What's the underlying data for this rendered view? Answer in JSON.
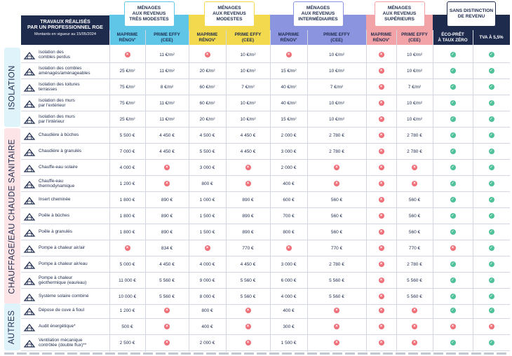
{
  "header": {
    "title_line1": "TRAVAUX RÉALISÉS",
    "title_line2": "PAR UN PROFESSIONNEL RGE",
    "subtitle": "Montants en vigueur au 15/05/2024"
  },
  "groups": [
    {
      "label": [
        "MÉNAGES",
        "AUX REVENUS",
        "TRÈS MODESTES"
      ],
      "color": "#5fc6e8"
    },
    {
      "label": [
        "MÉNAGES",
        "AUX REVENUS",
        "MODESTES"
      ],
      "color": "#f3d94e"
    },
    {
      "label": [
        "MÉNAGES",
        "AUX REVENUS",
        "INTERMÉDIAIRES"
      ],
      "color": "#8b95df"
    },
    {
      "label": [
        "MÉNAGES",
        "AUX REVENUS",
        "SUPÉRIEURS"
      ],
      "color": "#f2a3a7"
    },
    {
      "label": [
        "SANS DISTINCTION",
        "DE REVENU"
      ],
      "color": "#1e2b4d"
    }
  ],
  "subheaders": [
    [
      "MAPRIME",
      "RÉNOV'"
    ],
    [
      "PRIME EFFY",
      "(CEE)"
    ],
    [
      "MAPRIME",
      "RÉNOV'"
    ],
    [
      "PRIME EFFY",
      "(CEE)"
    ],
    [
      "MAPRIME",
      "RÉNOV'"
    ],
    [
      "PRIME EFFY",
      "(CEE)"
    ],
    [
      "MAPRIME",
      "RÉNOV'"
    ],
    [
      "PRIME EFFY",
      "(CEE)"
    ],
    [
      "ÉCO-PRÊT",
      "À TAUX ZÉRO"
    ],
    [
      "TVA À 5,5%"
    ]
  ],
  "sections": [
    {
      "name": "ISOLATION",
      "color": "#dff3fb"
    },
    {
      "name": "CHAUFFAGE/EAU CHAUDE SANITAIRE",
      "color": "#fde4e6"
    },
    {
      "name": "AUTRES",
      "color": "#dff3fb"
    }
  ],
  "rows": [
    {
      "section": 0,
      "icon": "attic-insulation-icon",
      "label": [
        "Isolation des",
        "combles perdus"
      ],
      "cells": [
        "x",
        "11 €/m²",
        "x",
        "10 €/m²",
        "x",
        "10 €/m²",
        "x",
        "10 €/m²",
        "v",
        "v"
      ]
    },
    {
      "section": 0,
      "icon": "converted-attic-icon",
      "label": [
        "Isolation des combles",
        "aménagés/aménageables"
      ],
      "cells": [
        "25 €/m²",
        "11 €/m²",
        "20 €/m²",
        "10 €/m²",
        "15 €/m²",
        "10 €/m²",
        "x",
        "10 €/m²",
        "v",
        "v"
      ]
    },
    {
      "section": 0,
      "icon": "roof-terrace-icon",
      "label": [
        "Isolation des toitures",
        "terrasses"
      ],
      "cells": [
        "75 €/m²",
        "8 €/m²",
        "60 €/m²",
        "7 €/m²",
        "40 €/m²",
        "7 €/m²",
        "x",
        "7 €/m²",
        "v",
        "v"
      ]
    },
    {
      "section": 0,
      "icon": "exterior-wall-icon",
      "label": [
        "Isolation des murs",
        "par l'extérieur"
      ],
      "cells": [
        "75 €/m²",
        "11 €/m²",
        "60 €/m²",
        "10 €/m²",
        "40 €/m²",
        "10 €/m²",
        "x",
        "10 €/m²",
        "v",
        "v"
      ]
    },
    {
      "section": 0,
      "icon": "interior-wall-icon",
      "label": [
        "Isolation des murs",
        "par l'intérieur"
      ],
      "cells": [
        "25 €/m²",
        "11 €/m²",
        "20 €/m²",
        "10 €/m²",
        "15 €/m²",
        "10 €/m²",
        "x",
        "10 €/m²",
        "v",
        "v"
      ]
    },
    {
      "section": 1,
      "icon": "log-boiler-icon",
      "label": [
        "Chaudière à bûches"
      ],
      "cells": [
        "5 500 €",
        "4 450 €",
        "4 500 €",
        "4 450 €",
        "2 000 €",
        "2 780 €",
        "x",
        "2 780 €",
        "v",
        "v"
      ]
    },
    {
      "section": 1,
      "icon": "pellet-boiler-icon",
      "label": [
        "Chaudière à granulés"
      ],
      "cells": [
        "7 000 €",
        "4 450 €",
        "5 500 €",
        "4 450 €",
        "3 000 €",
        "2 780 €",
        "x",
        "2 780 €",
        "v",
        "v"
      ]
    },
    {
      "section": 1,
      "icon": "solar-water-heater-icon",
      "label": [
        "Chauffe-eau solaire"
      ],
      "cells": [
        "4 000 €",
        "x",
        "3 000 €",
        "x",
        "2 000 €",
        "x",
        "x",
        "x",
        "v",
        "v"
      ]
    },
    {
      "section": 1,
      "icon": "thermodynamic-water-heater-icon",
      "label": [
        "Chauffe-eau",
        "thermodynamique"
      ],
      "cells": [
        "1 200 €",
        "x",
        "800 €",
        "x",
        "400 €",
        "x",
        "x",
        "x",
        "v",
        "v"
      ]
    },
    {
      "section": 1,
      "icon": "fireplace-insert-icon",
      "label": [
        "Insert cheminée"
      ],
      "cells": [
        "1 800 €",
        "890 €",
        "1 000 €",
        "890 €",
        "600 €",
        "560 €",
        "x",
        "560 €",
        "v",
        "v"
      ]
    },
    {
      "section": 1,
      "icon": "log-stove-icon",
      "label": [
        "Poêle à bûches"
      ],
      "cells": [
        "1 800 €",
        "890 €",
        "1 500 €",
        "890 €",
        "700 €",
        "560 €",
        "x",
        "560 €",
        "v",
        "v"
      ]
    },
    {
      "section": 1,
      "icon": "pellet-stove-icon",
      "label": [
        "Poêle à granulés"
      ],
      "cells": [
        "1 800 €",
        "890 €",
        "1 500 €",
        "890 €",
        "800 €",
        "560 €",
        "x",
        "560 €",
        "v",
        "v"
      ]
    },
    {
      "section": 1,
      "icon": "air-air-heat-pump-icon",
      "label": [
        "Pompe à chaleur air/air"
      ],
      "cells": [
        "x",
        "834 €",
        "x",
        "770 €",
        "x",
        "770 €",
        "x",
        "770 €",
        "x",
        "v"
      ]
    },
    {
      "section": 1,
      "icon": "air-water-heat-pump-icon",
      "label": [
        "Pompe à chaleur air/eau"
      ],
      "cells": [
        "5 000 €",
        "4 450 €",
        "4 000 €",
        "4 450 €",
        "3 000 €",
        "2 780 €",
        "x",
        "2 780 €",
        "v",
        "v"
      ]
    },
    {
      "section": 1,
      "icon": "geothermal-heat-pump-icon",
      "label": [
        "Pompe à chaleur",
        "géothermique (eau/eau)"
      ],
      "cells": [
        "11 000 €",
        "5 560 €",
        "9 000 €",
        "5 560 €",
        "6 000 €",
        "5 560 €",
        "x",
        "5 560 €",
        "v",
        "v"
      ]
    },
    {
      "section": 1,
      "icon": "combined-solar-system-icon",
      "label": [
        "Système solaire combiné"
      ],
      "cells": [
        "10 000 €",
        "5 560 €",
        "8 000 €",
        "5 560 €",
        "4 000 €",
        "5 560 €",
        "x",
        "5 560 €",
        "v",
        "v"
      ]
    },
    {
      "section": 2,
      "icon": "oil-tank-removal-icon",
      "label": [
        "Dépose de cuve à fioul"
      ],
      "cells": [
        "1 200 €",
        "x",
        "800 €",
        "x",
        "400 €",
        "x",
        "x",
        "x",
        "v",
        "v"
      ]
    },
    {
      "section": 2,
      "icon": "energy-audit-icon",
      "label": [
        "Audit énergétique*"
      ],
      "cells": [
        "500 €",
        "x",
        "400 €",
        "x",
        "300 €",
        "x",
        "x",
        "x",
        "x",
        "x"
      ]
    },
    {
      "section": 2,
      "icon": "ventilation-icon",
      "label": [
        "Ventilation mécanique",
        "contrôlée (double flux)**"
      ],
      "cells": [
        "2 500 €",
        "x",
        "2 000 €",
        "x",
        "1 500 €",
        "x",
        "x",
        "x",
        "v",
        "v"
      ]
    }
  ]
}
